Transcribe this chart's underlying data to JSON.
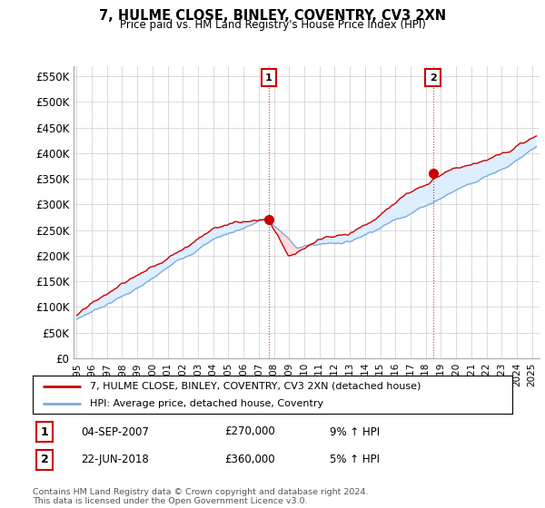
{
  "title": "7, HULME CLOSE, BINLEY, COVENTRY, CV3 2XN",
  "subtitle": "Price paid vs. HM Land Registry's House Price Index (HPI)",
  "ylabel_ticks": [
    "£0",
    "£50K",
    "£100K",
    "£150K",
    "£200K",
    "£250K",
    "£300K",
    "£350K",
    "£400K",
    "£450K",
    "£500K",
    "£550K"
  ],
  "ytick_vals": [
    0,
    50000,
    100000,
    150000,
    200000,
    250000,
    300000,
    350000,
    400000,
    450000,
    500000,
    550000
  ],
  "ylim": [
    0,
    570000
  ],
  "xlim_start": 1994.8,
  "xlim_end": 2025.5,
  "purchase1_x": 2007.67,
  "purchase1_y": 270000,
  "purchase2_x": 2018.47,
  "purchase2_y": 360000,
  "legend_line1": "7, HULME CLOSE, BINLEY, COVENTRY, CV3 2XN (detached house)",
  "legend_line2": "HPI: Average price, detached house, Coventry",
  "purchase1_date": "04-SEP-2007",
  "purchase1_price": "£270,000",
  "purchase1_hpi": "9% ↑ HPI",
  "purchase2_date": "22-JUN-2018",
  "purchase2_price": "£360,000",
  "purchase2_hpi": "5% ↑ HPI",
  "footer": "Contains HM Land Registry data © Crown copyright and database right 2024.\nThis data is licensed under the Open Government Licence v3.0.",
  "line_color_property": "#cc0000",
  "line_color_hpi": "#7aaadd",
  "fill_color_hpi": "#ddeeff",
  "background_color": "#ffffff",
  "grid_color": "#cccccc"
}
